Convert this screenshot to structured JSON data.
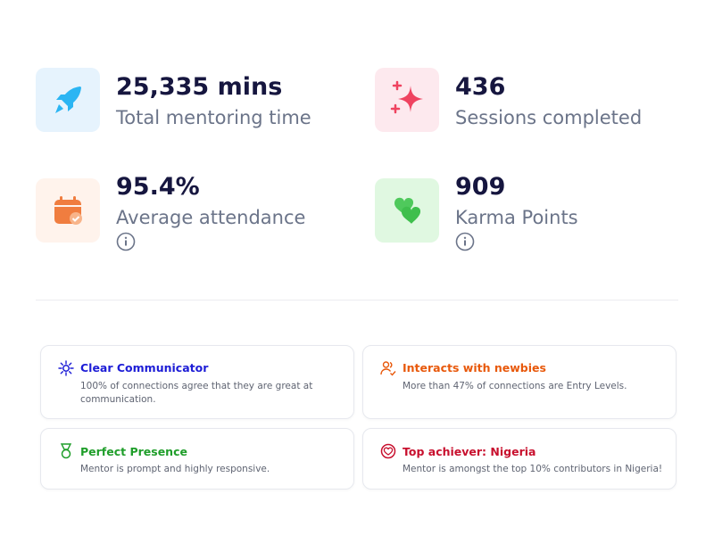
{
  "stats": [
    {
      "value": "25,335 mins",
      "label": "Total mentoring time"
    },
    {
      "value": "436",
      "label": "Sessions completed"
    },
    {
      "value": "95.4%",
      "label": "Average attendance"
    },
    {
      "value": "909",
      "label": "Karma Points"
    }
  ],
  "badges": [
    {
      "title": "Clear Communicator",
      "description": "100% of connections agree that they are great at communication."
    },
    {
      "title": "Interacts with newbies",
      "description": "More than 47% of connections are Entry Levels."
    },
    {
      "title": "Perfect Presence",
      "description": "Mentor is prompt and highly responsive."
    },
    {
      "title": "Top achiever: Nigeria",
      "description": "Mentor is amongst the top 10% contributors in Nigeria!"
    }
  ]
}
